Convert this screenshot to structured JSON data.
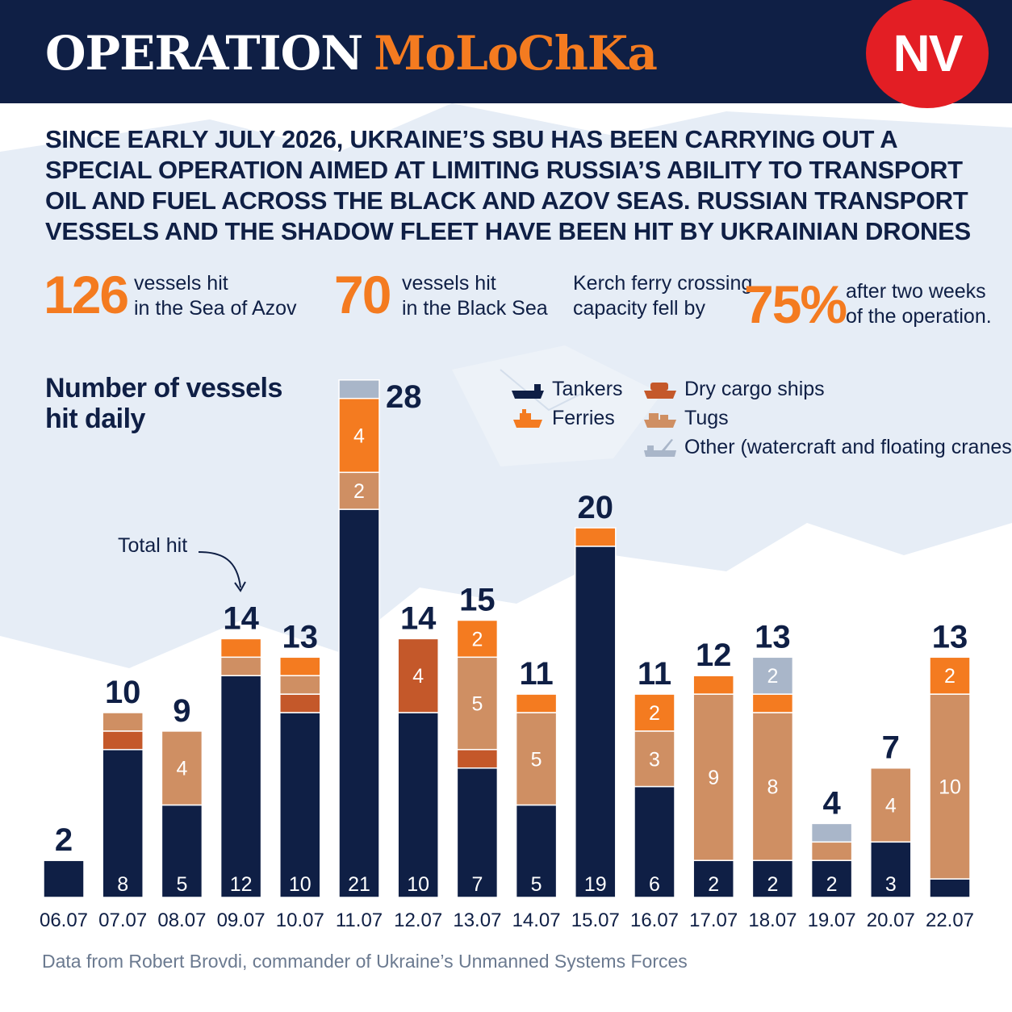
{
  "header": {
    "title_main": "OPERATION",
    "title_accent": "MoLoChKa",
    "logo": "NV",
    "colors": {
      "navy": "#0f1f45",
      "orange": "#f47b20",
      "red": "#e31e24"
    }
  },
  "intro": "SINCE EARLY JULY 2026, UKRAINE’S SBU HAS BEEN CARRYING OUT A SPECIAL OPERATION AIMED AT LIMITING RUSSIA’S ABILITY TO TRANSPORT OIL AND FUEL ACROSS THE BLACK AND AZOV SEAS. RUSSIAN TRANSPORT VESSELS AND THE SHADOW FLEET HAVE BEEN HIT BY UKRAINIAN DRONES",
  "stats": {
    "azov": {
      "value": "126",
      "line1": "vessels hit",
      "line2": "in the Sea of Azov"
    },
    "black": {
      "value": "70",
      "line1": "vessels hit",
      "line2": "in the Black Sea"
    },
    "kerch": {
      "pre1": "Kerch ferry crossing",
      "pre2": "capacity fell by",
      "value": "75%",
      "post1": "after two weeks",
      "post2": "of the operation."
    }
  },
  "annotation": "Total hit",
  "source": "Data from Robert Brovdi, commander of Ukraine’s Unmanned Systems Forces",
  "chart_data": {
    "type": "bar",
    "stacked": true,
    "title": "Number of vessels hit daily",
    "categories": [
      "06.07",
      "07.07",
      "08.07",
      "09.07",
      "10.07",
      "11.07",
      "12.07",
      "13.07",
      "14.07",
      "15.07",
      "16.07",
      "17.07",
      "18.07",
      "19.07",
      "20.07",
      "22.07"
    ],
    "series": [
      {
        "name": "Tankers",
        "color": "#0f1f45",
        "icon": "tanker-icon",
        "values": [
          2,
          8,
          5,
          12,
          10,
          21,
          10,
          7,
          5,
          19,
          6,
          2,
          2,
          2,
          3,
          1
        ]
      },
      {
        "name": "Dry cargo ships",
        "color": "#c4582a",
        "icon": "dry-cargo-ship-icon",
        "values": [
          0,
          1,
          0,
          0,
          1,
          0,
          4,
          1,
          0,
          0,
          0,
          0,
          0,
          0,
          0,
          0
        ]
      },
      {
        "name": "Tugs",
        "color": "#cf8f63",
        "icon": "tug-icon",
        "values": [
          0,
          1,
          4,
          1,
          1,
          2,
          0,
          5,
          5,
          0,
          3,
          9,
          8,
          1,
          4,
          10
        ]
      },
      {
        "name": "Ferries",
        "color": "#f47b20",
        "icon": "ferry-icon",
        "values": [
          0,
          0,
          0,
          1,
          1,
          4,
          0,
          2,
          1,
          1,
          2,
          1,
          1,
          0,
          0,
          2
        ]
      },
      {
        "name": "Other (watercraft and floating cranes)",
        "color": "#a9b6c9",
        "icon": "other-watercraft-icon",
        "values": [
          0,
          0,
          0,
          0,
          0,
          1,
          0,
          0,
          0,
          0,
          0,
          0,
          2,
          1,
          0,
          0
        ]
      }
    ],
    "totals": [
      2,
      10,
      9,
      14,
      13,
      28,
      14,
      15,
      11,
      20,
      11,
      12,
      13,
      4,
      7,
      13
    ],
    "segment_labels": [
      [
        null,
        "8",
        "5",
        "12",
        "10",
        "21",
        "10",
        "7",
        "5",
        "19",
        "6",
        "2",
        "2",
        "2",
        "3",
        null
      ],
      [
        null,
        null,
        null,
        null,
        null,
        null,
        "4",
        null,
        null,
        null,
        null,
        null,
        null,
        null,
        null,
        null
      ],
      [
        null,
        null,
        "4",
        null,
        null,
        "2",
        null,
        "5",
        "5",
        null,
        "3",
        "9",
        "8",
        null,
        "4",
        "10"
      ],
      [
        null,
        null,
        null,
        null,
        null,
        "4",
        null,
        "2",
        null,
        null,
        "2",
        null,
        null,
        null,
        null,
        "2"
      ],
      [
        null,
        null,
        null,
        null,
        null,
        null,
        null,
        null,
        null,
        null,
        null,
        null,
        "2",
        null,
        null,
        null
      ]
    ]
  }
}
